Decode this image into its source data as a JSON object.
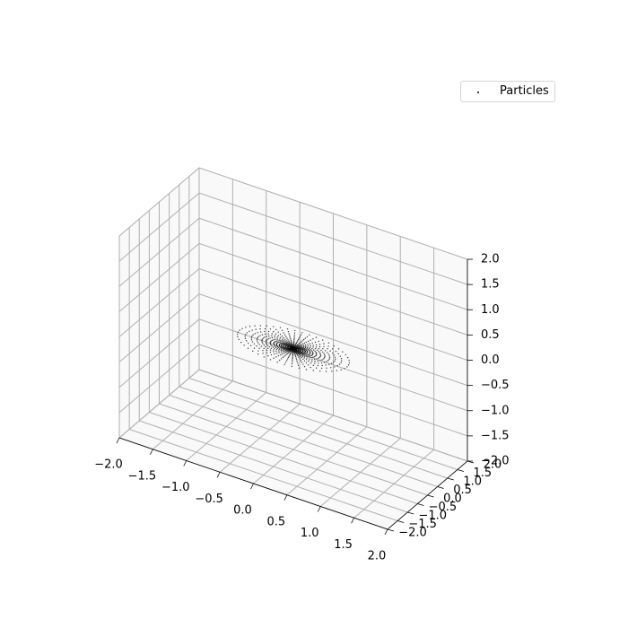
{
  "chart_data": {
    "type": "scatter3d",
    "title": "",
    "xlabel": "",
    "ylabel": "",
    "zlabel": "",
    "xlim": [
      -2.0,
      2.0
    ],
    "ylim": [
      -2.0,
      2.0
    ],
    "zlim": [
      -2.0,
      2.0
    ],
    "x_ticks": [
      "−2.0",
      "−1.5",
      "−1.0",
      "−0.5",
      "0.0",
      "0.5",
      "1.0",
      "1.5",
      "2.0"
    ],
    "y_ticks": [
      "−2.0",
      "−1.5",
      "−1.0",
      "−0.5",
      "0.0",
      "0.5",
      "1.0",
      "1.5",
      "2.0"
    ],
    "z_ticks": [
      "−2.0",
      "−1.5",
      "−1.0",
      "−0.5",
      "0.0",
      "0.5",
      "1.0",
      "1.5",
      "2.0"
    ],
    "grid": true,
    "legend": {
      "placement": "upper-right",
      "entries": [
        "Particles"
      ]
    },
    "series": [
      {
        "name": "Particles",
        "color": "#000000",
        "marker": "point",
        "distribution": "concentric rings in the plane z = 0, centered at the origin",
        "radii": [
          0.03,
          0.05,
          0.08,
          0.11,
          0.14,
          0.17,
          0.2,
          0.24,
          0.28,
          0.33,
          0.39,
          0.45,
          0.52,
          0.6,
          0.69,
          0.8
        ],
        "points_per_ring": 48,
        "z": 0.0
      }
    ]
  }
}
